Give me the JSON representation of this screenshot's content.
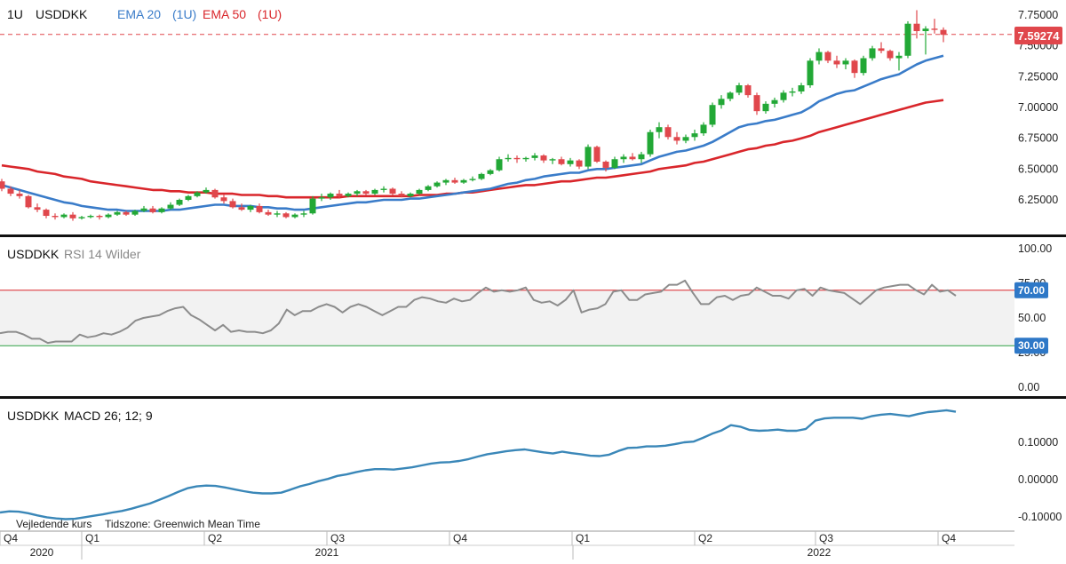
{
  "header": {
    "period": "1U",
    "symbol": "USDDKK",
    "ema20_label": "EMA 20",
    "ema20_period": "(1U)",
    "ema50_label": "EMA 50",
    "ema50_period": "(1U)"
  },
  "price_badge": "7.59274",
  "rsi_header": {
    "symbol": "USDDKK",
    "label": "RSI 14 Wilder"
  },
  "macd_header": {
    "symbol": "USDDKK",
    "label": "MACD 26; 12; 9"
  },
  "footnote": {
    "source": "Vejledende kurs",
    "timezone": "Tidszone: Greenwich Mean Time"
  },
  "colors": {
    "up": "#22a836",
    "down": "#e0474c",
    "ema20": "#3a7cc9",
    "ema50": "#d9262b",
    "rsi": "#8c8c8c",
    "rsi_upper": "#d9262b",
    "rsi_lower": "#2ea043",
    "macd": "#3a87b8",
    "badge_price": "#e0474c",
    "badge_rsi": "#2e78c7"
  },
  "x_axis": {
    "quarters": [
      "Q4",
      "Q1",
      "Q2",
      "Q3",
      "Q4",
      "Q1",
      "Q2",
      "Q3",
      "Q4"
    ],
    "years": [
      "2020",
      "2021",
      "2022"
    ]
  },
  "chart_data": [
    {
      "type": "candlestick",
      "title": "USDDKK",
      "y_ticks": [
        "7.75000",
        "7.50000",
        "7.25000",
        "7.00000",
        "6.75000",
        "6.50000",
        "6.25000"
      ],
      "ylim": [
        6.05,
        7.8
      ],
      "last_price": 7.59274,
      "candles": [
        [
          6.4,
          6.42,
          6.32,
          6.34
        ],
        [
          6.34,
          6.36,
          6.28,
          6.3
        ],
        [
          6.3,
          6.33,
          6.26,
          6.28
        ],
        [
          6.28,
          6.29,
          6.18,
          6.19
        ],
        [
          6.19,
          6.22,
          6.15,
          6.17
        ],
        [
          6.17,
          6.18,
          6.1,
          6.12
        ],
        [
          6.12,
          6.14,
          6.09,
          6.11
        ],
        [
          6.11,
          6.14,
          6.1,
          6.13
        ],
        [
          6.13,
          6.15,
          6.08,
          6.1
        ],
        [
          6.1,
          6.12,
          6.09,
          6.11
        ],
        [
          6.11,
          6.13,
          6.1,
          6.12
        ],
        [
          6.12,
          6.13,
          6.09,
          6.11
        ],
        [
          6.11,
          6.14,
          6.1,
          6.13
        ],
        [
          6.13,
          6.16,
          6.12,
          6.15
        ],
        [
          6.15,
          6.16,
          6.12,
          6.13
        ],
        [
          6.13,
          6.17,
          6.12,
          6.16
        ],
        [
          6.16,
          6.2,
          6.15,
          6.18
        ],
        [
          6.18,
          6.2,
          6.14,
          6.15
        ],
        [
          6.15,
          6.19,
          6.14,
          6.18
        ],
        [
          6.18,
          6.23,
          6.17,
          6.21
        ],
        [
          6.21,
          6.26,
          6.2,
          6.25
        ],
        [
          6.25,
          6.29,
          6.24,
          6.28
        ],
        [
          6.28,
          6.32,
          6.27,
          6.31
        ],
        [
          6.31,
          6.35,
          6.3,
          6.33
        ],
        [
          6.33,
          6.34,
          6.26,
          6.27
        ],
        [
          6.27,
          6.29,
          6.22,
          6.24
        ],
        [
          6.24,
          6.26,
          6.18,
          6.19
        ],
        [
          6.19,
          6.22,
          6.16,
          6.17
        ],
        [
          6.17,
          6.21,
          6.15,
          6.2
        ],
        [
          6.2,
          6.22,
          6.14,
          6.15
        ],
        [
          6.15,
          6.17,
          6.12,
          6.13
        ],
        [
          6.13,
          6.16,
          6.11,
          6.14
        ],
        [
          6.14,
          6.15,
          6.1,
          6.11
        ],
        [
          6.11,
          6.14,
          6.1,
          6.13
        ],
        [
          6.13,
          6.16,
          6.11,
          6.14
        ],
        [
          6.14,
          6.28,
          6.13,
          6.26
        ],
        [
          6.26,
          6.3,
          6.24,
          6.27
        ],
        [
          6.27,
          6.31,
          6.25,
          6.3
        ],
        [
          6.3,
          6.33,
          6.26,
          6.28
        ],
        [
          6.28,
          6.31,
          6.27,
          6.3
        ],
        [
          6.3,
          6.33,
          6.28,
          6.32
        ],
        [
          6.32,
          6.33,
          6.29,
          6.3
        ],
        [
          6.3,
          6.34,
          6.29,
          6.33
        ],
        [
          6.33,
          6.36,
          6.31,
          6.34
        ],
        [
          6.34,
          6.35,
          6.29,
          6.3
        ],
        [
          6.3,
          6.32,
          6.27,
          6.28
        ],
        [
          6.28,
          6.31,
          6.27,
          6.3
        ],
        [
          6.3,
          6.34,
          6.29,
          6.33
        ],
        [
          6.33,
          6.37,
          6.32,
          6.36
        ],
        [
          6.36,
          6.4,
          6.35,
          6.39
        ],
        [
          6.39,
          6.42,
          6.37,
          6.41
        ],
        [
          6.41,
          6.43,
          6.38,
          6.39
        ],
        [
          6.39,
          6.42,
          6.38,
          6.41
        ],
        [
          6.41,
          6.44,
          6.4,
          6.42
        ],
        [
          6.42,
          6.47,
          6.41,
          6.46
        ],
        [
          6.46,
          6.5,
          6.45,
          6.49
        ],
        [
          6.49,
          6.6,
          6.48,
          6.58
        ],
        [
          6.58,
          6.62,
          6.56,
          6.59
        ],
        [
          6.59,
          6.61,
          6.55,
          6.58
        ],
        [
          6.58,
          6.6,
          6.56,
          6.59
        ],
        [
          6.59,
          6.63,
          6.57,
          6.61
        ],
        [
          6.61,
          6.62,
          6.55,
          6.57
        ],
        [
          6.57,
          6.59,
          6.54,
          6.58
        ],
        [
          6.58,
          6.6,
          6.53,
          6.54
        ],
        [
          6.54,
          6.59,
          6.52,
          6.57
        ],
        [
          6.57,
          6.58,
          6.5,
          6.52
        ],
        [
          6.52,
          6.7,
          6.5,
          6.68
        ],
        [
          6.68,
          6.69,
          6.55,
          6.56
        ],
        [
          6.56,
          6.57,
          6.48,
          6.51
        ],
        [
          6.51,
          6.6,
          6.5,
          6.58
        ],
        [
          6.58,
          6.62,
          6.55,
          6.6
        ],
        [
          6.6,
          6.63,
          6.57,
          6.58
        ],
        [
          6.58,
          6.64,
          6.55,
          6.62
        ],
        [
          6.62,
          6.82,
          6.6,
          6.8
        ],
        [
          6.8,
          6.88,
          6.75,
          6.84
        ],
        [
          6.84,
          6.86,
          6.74,
          6.76
        ],
        [
          6.76,
          6.8,
          6.7,
          6.73
        ],
        [
          6.73,
          6.78,
          6.71,
          6.76
        ],
        [
          6.76,
          6.82,
          6.73,
          6.79
        ],
        [
          6.79,
          6.88,
          6.77,
          6.86
        ],
        [
          6.86,
          7.04,
          6.84,
          7.02
        ],
        [
          7.02,
          7.1,
          6.99,
          7.07
        ],
        [
          7.07,
          7.13,
          7.05,
          7.12
        ],
        [
          7.12,
          7.2,
          7.1,
          7.18
        ],
        [
          7.18,
          7.19,
          7.08,
          7.1
        ],
        [
          7.1,
          7.12,
          6.94,
          6.97
        ],
        [
          6.97,
          7.05,
          6.95,
          7.03
        ],
        [
          7.03,
          7.08,
          7.0,
          7.06
        ],
        [
          7.06,
          7.14,
          7.04,
          7.12
        ],
        [
          7.12,
          7.16,
          7.09,
          7.13
        ],
        [
          7.13,
          7.2,
          7.11,
          7.18
        ],
        [
          7.18,
          7.4,
          7.16,
          7.38
        ],
        [
          7.38,
          7.48,
          7.35,
          7.45
        ],
        [
          7.45,
          7.46,
          7.36,
          7.38
        ],
        [
          7.38,
          7.42,
          7.32,
          7.35
        ],
        [
          7.35,
          7.4,
          7.31,
          7.38
        ],
        [
          7.38,
          7.39,
          7.24,
          7.28
        ],
        [
          7.28,
          7.42,
          7.26,
          7.4
        ],
        [
          7.4,
          7.5,
          7.38,
          7.48
        ],
        [
          7.48,
          7.53,
          7.44,
          7.46
        ],
        [
          7.46,
          7.47,
          7.38,
          7.4
        ],
        [
          7.4,
          7.45,
          7.3,
          7.42
        ],
        [
          7.42,
          7.7,
          7.4,
          7.68
        ],
        [
          7.68,
          7.79,
          7.56,
          7.62
        ],
        [
          7.62,
          7.66,
          7.43,
          7.64
        ],
        [
          7.64,
          7.72,
          7.6,
          7.63
        ],
        [
          7.63,
          7.65,
          7.53,
          7.59
        ]
      ],
      "series": [
        {
          "name": "EMA 20",
          "values": [
            6.37,
            6.35,
            6.33,
            6.31,
            6.29,
            6.27,
            6.25,
            6.23,
            6.22,
            6.2,
            6.19,
            6.18,
            6.17,
            6.17,
            6.16,
            6.16,
            6.16,
            6.16,
            6.16,
            6.17,
            6.17,
            6.18,
            6.19,
            6.2,
            6.21,
            6.21,
            6.2,
            6.2,
            6.2,
            6.19,
            6.19,
            6.18,
            6.18,
            6.17,
            6.17,
            6.18,
            6.19,
            6.2,
            6.21,
            6.22,
            6.23,
            6.23,
            6.24,
            6.25,
            6.25,
            6.25,
            6.26,
            6.26,
            6.27,
            6.28,
            6.29,
            6.3,
            6.31,
            6.32,
            6.33,
            6.34,
            6.36,
            6.38,
            6.39,
            6.41,
            6.42,
            6.44,
            6.45,
            6.46,
            6.47,
            6.47,
            6.49,
            6.5,
            6.5,
            6.51,
            6.52,
            6.53,
            6.54,
            6.57,
            6.6,
            6.62,
            6.64,
            6.65,
            6.67,
            6.69,
            6.72,
            6.76,
            6.8,
            6.84,
            6.86,
            6.87,
            6.89,
            6.9,
            6.92,
            6.94,
            6.96,
            7.0,
            7.05,
            7.08,
            7.11,
            7.13,
            7.14,
            7.17,
            7.2,
            7.23,
            7.25,
            7.27,
            7.31,
            7.35,
            7.38,
            7.4,
            7.42
          ]
        },
        {
          "name": "EMA 50",
          "values": [
            6.53,
            6.52,
            6.51,
            6.5,
            6.48,
            6.47,
            6.46,
            6.44,
            6.43,
            6.42,
            6.4,
            6.39,
            6.38,
            6.37,
            6.36,
            6.35,
            6.34,
            6.33,
            6.33,
            6.32,
            6.32,
            6.31,
            6.31,
            6.31,
            6.3,
            6.3,
            6.3,
            6.29,
            6.29,
            6.29,
            6.28,
            6.28,
            6.27,
            6.27,
            6.27,
            6.27,
            6.27,
            6.27,
            6.27,
            6.28,
            6.28,
            6.28,
            6.28,
            6.28,
            6.28,
            6.28,
            6.28,
            6.29,
            6.29,
            6.29,
            6.3,
            6.3,
            6.31,
            6.31,
            6.32,
            6.33,
            6.34,
            6.35,
            6.36,
            6.37,
            6.37,
            6.38,
            6.39,
            6.4,
            6.4,
            6.41,
            6.42,
            6.43,
            6.43,
            6.44,
            6.45,
            6.46,
            6.47,
            6.48,
            6.5,
            6.51,
            6.52,
            6.53,
            6.55,
            6.56,
            6.58,
            6.6,
            6.62,
            6.64,
            6.66,
            6.67,
            6.69,
            6.7,
            6.72,
            6.73,
            6.75,
            6.77,
            6.8,
            6.82,
            6.84,
            6.86,
            6.88,
            6.9,
            6.92,
            6.94,
            6.96,
            6.98,
            7.0,
            7.02,
            7.04,
            7.05,
            7.06
          ]
        }
      ]
    },
    {
      "type": "line",
      "title": "USDDKK RSI 14 Wilder",
      "y_ticks": [
        "100.00",
        "75.00",
        "50.00",
        "25.00",
        "0.00"
      ],
      "ylim": [
        0,
        100
      ],
      "levels": [
        70,
        30
      ],
      "level_labels": [
        "70.00",
        "30.00"
      ],
      "series": [
        {
          "name": "RSI 14 Wilder",
          "values": [
            39,
            40,
            40,
            38,
            35,
            35,
            32,
            33,
            33,
            33,
            38,
            36,
            37,
            39,
            38,
            40,
            43,
            48,
            50,
            51,
            52,
            55,
            57,
            58,
            52,
            49,
            45,
            41,
            45,
            40,
            41,
            40,
            40,
            39,
            41,
            46,
            56,
            52,
            55,
            55,
            58,
            60,
            58,
            54,
            58,
            60,
            58,
            55,
            52,
            55,
            58,
            58,
            63,
            65,
            64,
            62,
            61,
            64,
            62,
            63,
            68,
            72,
            69,
            70,
            69,
            70,
            72,
            63,
            61,
            62,
            59,
            63,
            70,
            54,
            56,
            57,
            60,
            69,
            70,
            63,
            63,
            67,
            68,
            69,
            74,
            74,
            77,
            68,
            60,
            60,
            65,
            66,
            63,
            66,
            67,
            72,
            69,
            66,
            66,
            64,
            70,
            71,
            66,
            72,
            70,
            69,
            68,
            64,
            60,
            65,
            70,
            72,
            73,
            74,
            74,
            70,
            67,
            74,
            69,
            70,
            66
          ]
        }
      ]
    },
    {
      "type": "line",
      "title": "USDDKK MACD 26; 12; 9",
      "y_ticks": [
        "0.10000",
        "0.00000",
        "-0.10000"
      ],
      "ylim": [
        -0.155,
        0.215
      ],
      "series": [
        {
          "name": "MACD 26; 12; 9",
          "values": [
            -0.088,
            -0.085,
            -0.086,
            -0.09,
            -0.096,
            -0.101,
            -0.104,
            -0.106,
            -0.105,
            -0.101,
            -0.097,
            -0.093,
            -0.088,
            -0.084,
            -0.078,
            -0.071,
            -0.064,
            -0.054,
            -0.044,
            -0.033,
            -0.023,
            -0.018,
            -0.016,
            -0.017,
            -0.021,
            -0.026,
            -0.031,
            -0.035,
            -0.037,
            -0.037,
            -0.035,
            -0.027,
            -0.018,
            -0.012,
            -0.004,
            0.002,
            0.01,
            0.014,
            0.02,
            0.025,
            0.028,
            0.028,
            0.027,
            0.03,
            0.033,
            0.038,
            0.043,
            0.046,
            0.047,
            0.05,
            0.055,
            0.062,
            0.068,
            0.072,
            0.076,
            0.079,
            0.081,
            0.077,
            0.073,
            0.07,
            0.075,
            0.071,
            0.068,
            0.064,
            0.063,
            0.067,
            0.077,
            0.085,
            0.086,
            0.089,
            0.089,
            0.091,
            0.095,
            0.1,
            0.102,
            0.112,
            0.123,
            0.132,
            0.146,
            0.142,
            0.133,
            0.131,
            0.132,
            0.134,
            0.131,
            0.131,
            0.136,
            0.158,
            0.164,
            0.166,
            0.166,
            0.166,
            0.163,
            0.17,
            0.174,
            0.176,
            0.173,
            0.17,
            0.176,
            0.181,
            0.183,
            0.186,
            0.182
          ]
        }
      ]
    }
  ]
}
